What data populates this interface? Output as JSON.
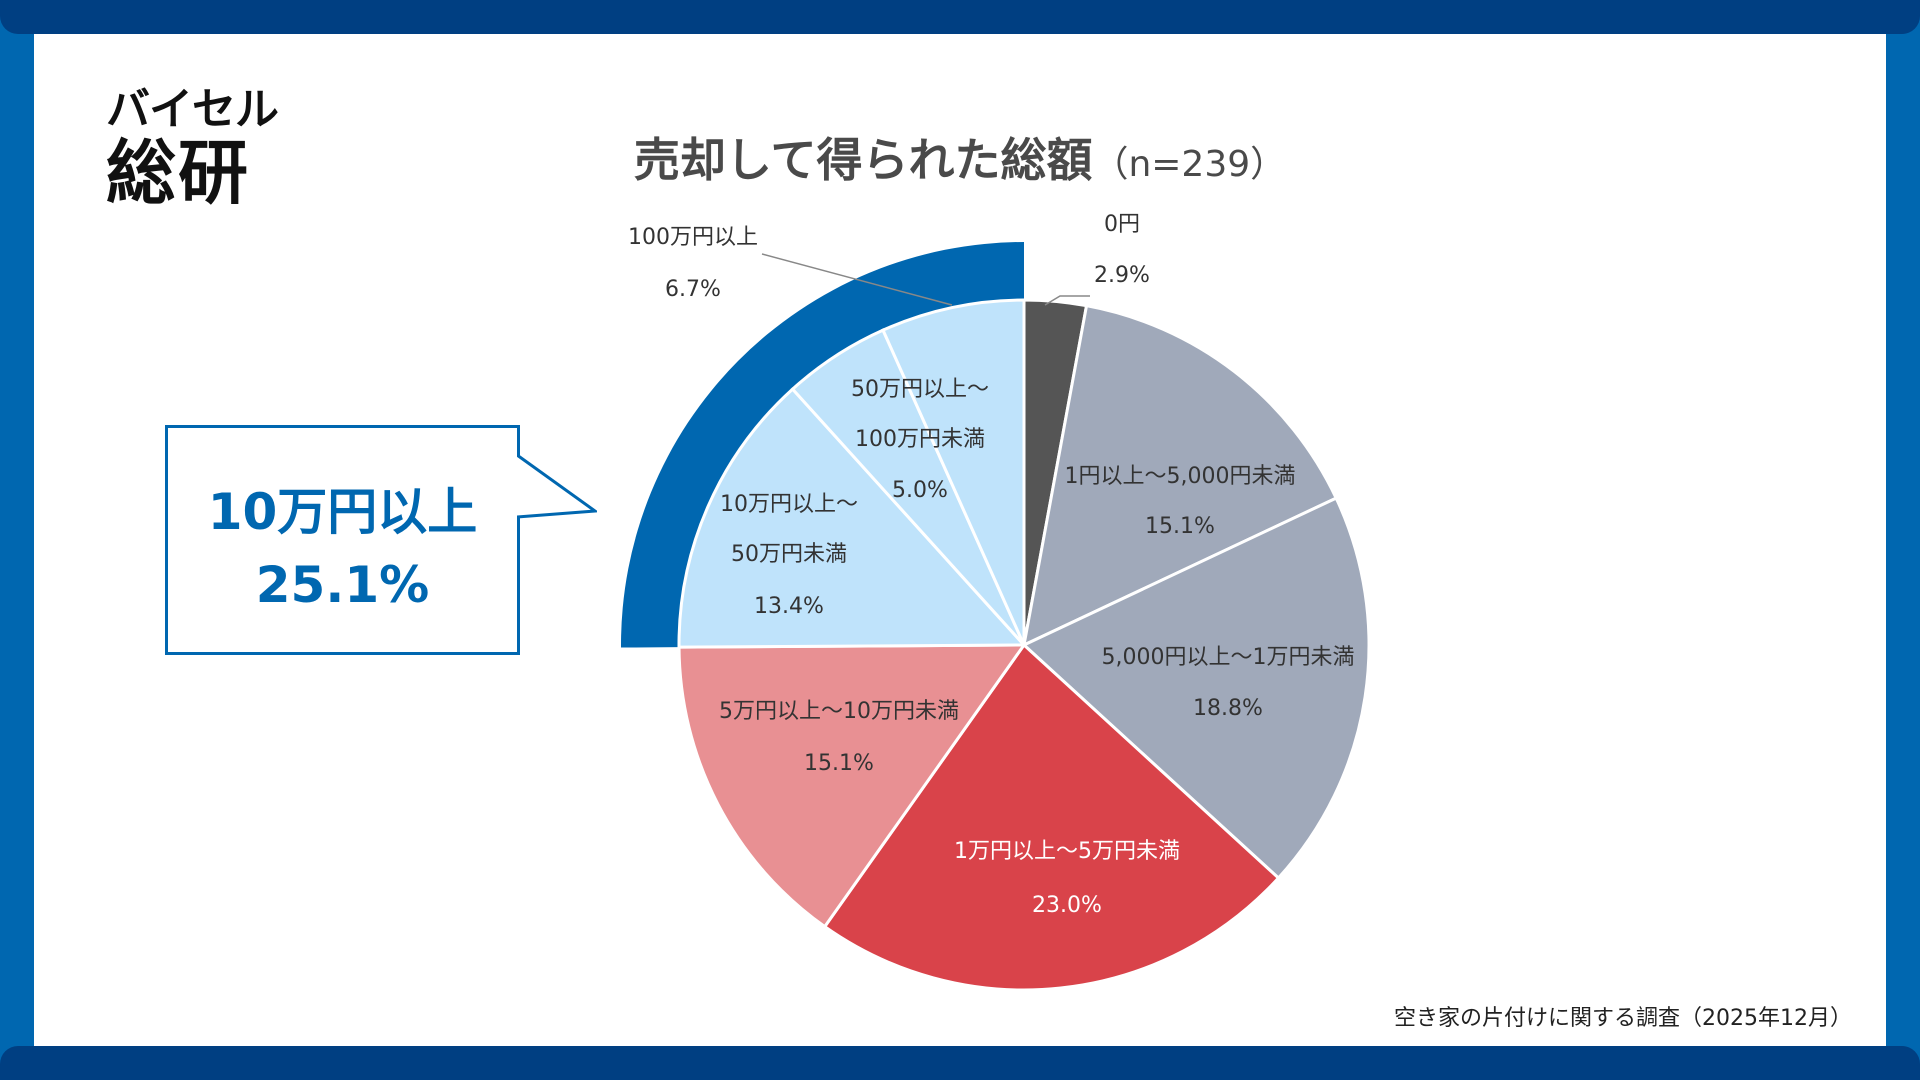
{
  "brand": {
    "line1": "バイセル",
    "line2": "総研"
  },
  "source_note": "空き家の片付けに関する調査（2025年12月）",
  "callout": {
    "line1": "10万円以上",
    "line2": "25.1%"
  },
  "chart_data": {
    "type": "pie",
    "title": "売却して得られた総額",
    "subtitle": "（n=239）",
    "slices": [
      {
        "label": "0円",
        "value": 2.9,
        "value_text": "2.9%",
        "color": "#555555"
      },
      {
        "label": "1円以上～5,000円未満",
        "value": 15.1,
        "value_text": "15.1%",
        "color": "#a0a9ba"
      },
      {
        "label": "5,000円以上～1万円未満",
        "value": 18.8,
        "value_text": "18.8%",
        "color": "#a0a9ba"
      },
      {
        "label": "1万円以上～5万円未満",
        "value": 23.0,
        "value_text": "23.0%",
        "color": "#d9434a"
      },
      {
        "label": "5万円以上～10万円未満",
        "value": 15.1,
        "value_text": "15.1%",
        "color": "#e89093"
      },
      {
        "label": "10万円以上～\n50万円未満",
        "value": 13.4,
        "value_text": "13.4%",
        "color": "#bfe3fb"
      },
      {
        "label": "50万円以上～\n100万円未満",
        "value": 5.0,
        "value_text": "5.0%",
        "color": "#bfe3fb"
      },
      {
        "label": "100万円以上",
        "value": 6.7,
        "value_text": "6.7%",
        "color": "#bfe3fb"
      }
    ],
    "highlight": {
      "label": "10万円以上",
      "value": 25.1,
      "color": "#0067b0"
    }
  }
}
